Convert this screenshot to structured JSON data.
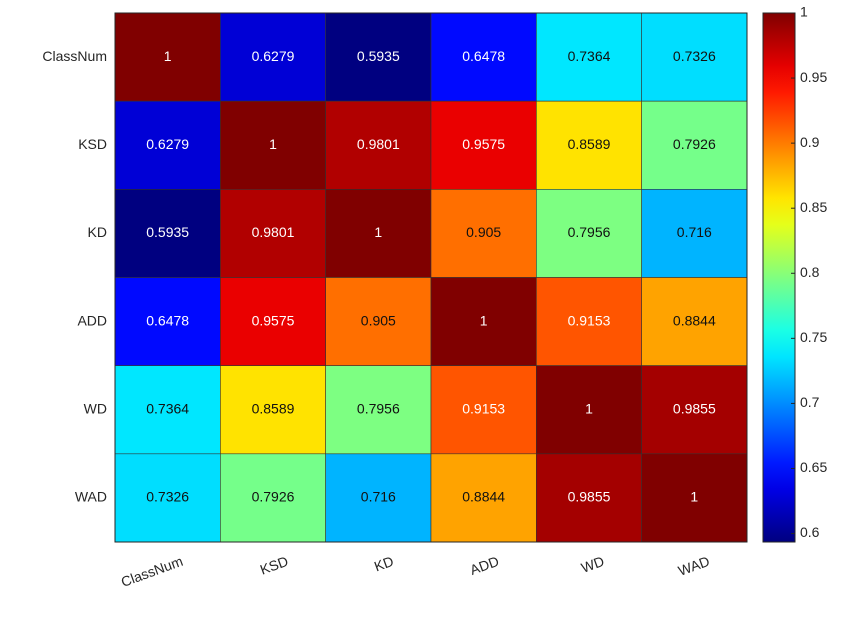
{
  "chart_data": {
    "type": "heatmap",
    "x_categories": [
      "ClassNum",
      "KSD",
      "KD",
      "ADD",
      "WD",
      "WAD"
    ],
    "y_categories": [
      "ClassNum",
      "KSD",
      "KD",
      "ADD",
      "WD",
      "WAD"
    ],
    "values": [
      [
        1,
        0.6279,
        0.5935,
        0.6478,
        0.7364,
        0.7326
      ],
      [
        0.6279,
        1,
        0.9801,
        0.9575,
        0.8589,
        0.7926
      ],
      [
        0.5935,
        0.9801,
        1,
        0.905,
        0.7956,
        0.716
      ],
      [
        0.6478,
        0.9575,
        0.905,
        1,
        0.9153,
        0.8844
      ],
      [
        0.7364,
        0.8589,
        0.7956,
        0.9153,
        1,
        0.9855
      ],
      [
        0.7326,
        0.7926,
        0.716,
        0.8844,
        0.9855,
        1
      ]
    ],
    "colormap": "jet",
    "clim": [
      0.5935,
      1
    ],
    "cticks": [
      0.6,
      0.65,
      0.7,
      0.75,
      0.8,
      0.85,
      0.9,
      0.95,
      1
    ]
  }
}
